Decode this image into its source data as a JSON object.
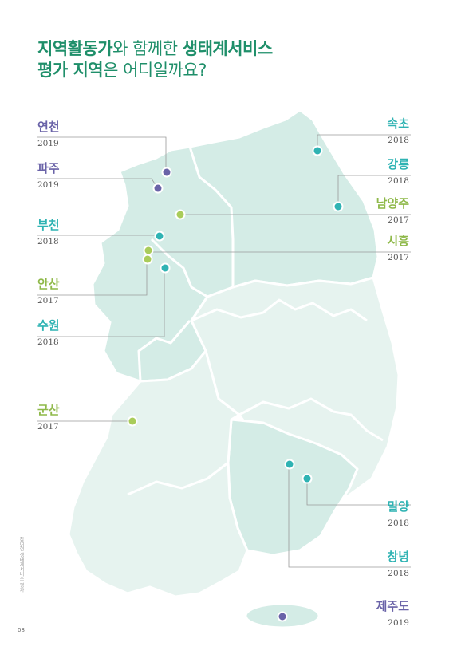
{
  "title": {
    "line1_bold": "지역활동가",
    "line1_mid": "와 함께한 ",
    "line1_bold2": "생태계서비스",
    "line2_bold": "평가 지역",
    "line2_rest": "은 어디일까요?"
  },
  "colors": {
    "accent": "#1f8f6a",
    "purple": "#6a63a8",
    "teal": "#2fb3b3",
    "lime": "#a9cc5a",
    "map_dark": "#d4ece6",
    "map_light": "#e8f4f1"
  },
  "regions": [
    {
      "name": "연천",
      "year": "2019",
      "color": "purple"
    },
    {
      "name": "파주",
      "year": "2019",
      "color": "purple"
    },
    {
      "name": "부천",
      "year": "2018",
      "color": "teal"
    },
    {
      "name": "안산",
      "year": "2017",
      "color": "lime"
    },
    {
      "name": "수원",
      "year": "2018",
      "color": "teal"
    },
    {
      "name": "군산",
      "year": "2017",
      "color": "lime"
    },
    {
      "name": "속초",
      "year": "2018",
      "color": "teal"
    },
    {
      "name": "강릉",
      "year": "2018",
      "color": "teal"
    },
    {
      "name": "남양주",
      "year": "2017",
      "color": "lime"
    },
    {
      "name": "시흥",
      "year": "2017",
      "color": "lime"
    },
    {
      "name": "밀양",
      "year": "2018",
      "color": "teal"
    },
    {
      "name": "창녕",
      "year": "2018",
      "color": "teal"
    },
    {
      "name": "제주도",
      "year": "2019",
      "color": "purple"
    }
  ],
  "side_text": "참여형 생태계서비스 평가",
  "page_number": "08"
}
